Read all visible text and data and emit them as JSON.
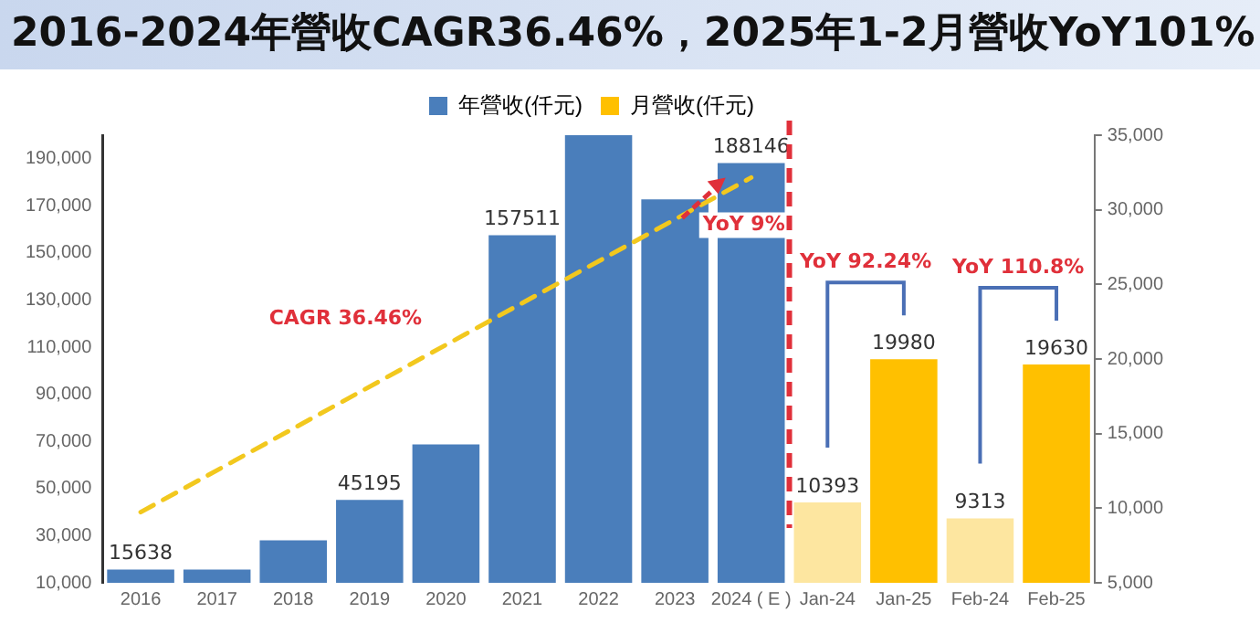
{
  "chart_data": {
    "type": "bar",
    "title": "2016-2024年營收CAGR36.46%，2025年1-2月營收YoY101%",
    "categories": [
      "2016",
      "2017",
      "2018",
      "2019",
      "2020",
      "2021",
      "2022",
      "2023",
      "2024 ( E )",
      "Jan-24",
      "Jan-25",
      "Feb-24",
      "Feb-25"
    ],
    "series": [
      {
        "name": "年營收(仟元)",
        "color": "#4a7ebb",
        "values": [
          15638,
          15600,
          28000,
          45195,
          68700,
          157511,
          200000,
          172800,
          188146,
          null,
          null,
          null,
          null
        ],
        "value_labels": [
          "15638",
          null,
          null,
          "45195",
          null,
          "157511",
          null,
          null,
          "188146",
          null,
          null,
          null,
          null
        ]
      },
      {
        "name": "月營收(仟元)",
        "axis": "y2",
        "color": "#ffc000",
        "colors": [
          null,
          null,
          null,
          null,
          null,
          null,
          null,
          null,
          null,
          "#fde6a0",
          "#ffc000",
          "#fde6a0",
          "#ffc000"
        ],
        "values": [
          null,
          null,
          null,
          null,
          null,
          null,
          null,
          null,
          null,
          10393,
          19980,
          9313,
          19630
        ],
        "value_labels": [
          null,
          null,
          null,
          null,
          null,
          null,
          null,
          null,
          null,
          "10393",
          "19980",
          "9313",
          "19630"
        ]
      },
      {
        "type": "line",
        "color": "#f2c81e",
        "line_style": "dashed",
        "marker": "none",
        "values": [
          40000,
          null,
          null,
          null,
          null,
          null,
          null,
          null,
          182000,
          null,
          null,
          null,
          null
        ]
      }
    ],
    "ylim": [
      10000,
      200000
    ],
    "yticks": [
      {
        "value": 10000,
        "label": "10,000"
      },
      {
        "value": 30000,
        "label": "30,000"
      },
      {
        "value": 50000,
        "label": "50,000"
      },
      {
        "value": 70000,
        "label": "70,000"
      },
      {
        "value": 90000,
        "label": "90,000"
      },
      {
        "value": 110000,
        "label": "110,000"
      },
      {
        "value": 130000,
        "label": "130,000"
      },
      {
        "value": 150000,
        "label": "150,000"
      },
      {
        "value": 170000,
        "label": "170,000"
      },
      {
        "value": 190000,
        "label": "190,000"
      }
    ],
    "y2lim": [
      5000,
      35000
    ],
    "y2ticks": [
      {
        "value": 5000,
        "label": "5,000"
      },
      {
        "value": 10000,
        "label": "10,000"
      },
      {
        "value": 15000,
        "label": "15,000"
      },
      {
        "value": 20000,
        "label": "20,000"
      },
      {
        "value": 25000,
        "label": "25,000"
      },
      {
        "value": 30000,
        "label": "30,000"
      },
      {
        "value": 35000,
        "label": "35,000"
      }
    ],
    "legend": "top",
    "annotations": [
      "CAGR 36.46%",
      "YoY 9%",
      "YoY 92.24%",
      "YoY 110.8%"
    ]
  }
}
